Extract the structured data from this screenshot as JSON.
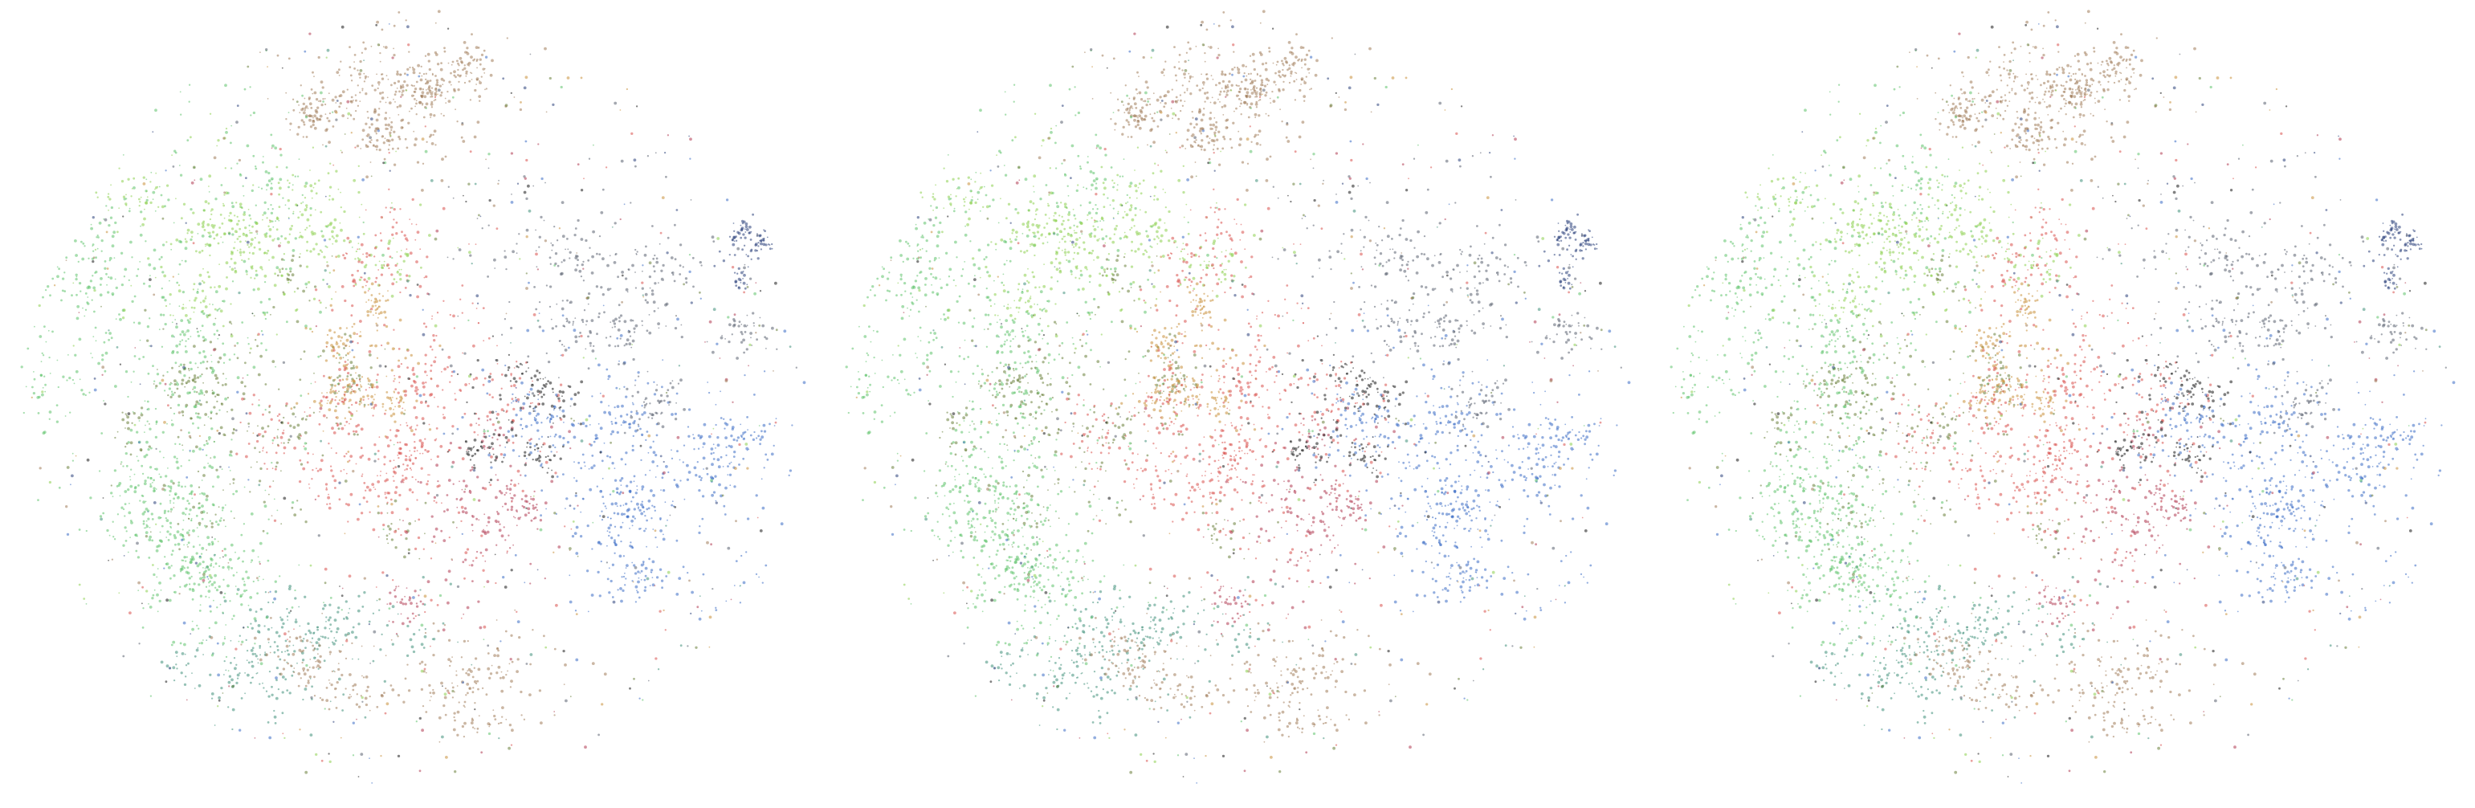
{
  "chart_data": [
    {
      "type": "scatter",
      "title": "",
      "xlabel": "",
      "ylabel": "",
      "axes_visible": false,
      "grid": false,
      "legend": "none",
      "point_count_estimate": 60000,
      "colors": {
        "green": "#5ec26b",
        "lime": "#8ccf4f",
        "olive": "#6a7f3a",
        "brown": "#a07c5a",
        "orange": "#c9903a",
        "red": "#d9514d",
        "crimson": "#b03a52",
        "blue": "#3b6cc4",
        "navy": "#2a3f7a",
        "slate": "#5a6070",
        "black": "#1a1a1a",
        "teal": "#3f8f7a"
      },
      "clusters": [
        {
          "name": "",
          "color": "green",
          "cx": -0.62,
          "cy": 0.28,
          "sx": 0.2,
          "sy": 0.32,
          "weight": 0.16
        },
        {
          "name": "",
          "color": "lime",
          "cx": -0.35,
          "cy": 0.42,
          "sx": 0.18,
          "sy": 0.12,
          "weight": 0.08
        },
        {
          "name": "",
          "color": "olive",
          "cx": -0.42,
          "cy": -0.05,
          "sx": 0.14,
          "sy": 0.18,
          "weight": 0.06
        },
        {
          "name": "",
          "color": "brown",
          "cx": -0.02,
          "cy": 0.8,
          "sx": 0.14,
          "sy": 0.12,
          "weight": 0.09
        },
        {
          "name": "",
          "color": "orange",
          "cx": -0.12,
          "cy": 0.1,
          "sx": 0.08,
          "sy": 0.1,
          "weight": 0.04
        },
        {
          "name": "",
          "color": "red",
          "cx": 0.02,
          "cy": -0.05,
          "sx": 0.16,
          "sy": 0.22,
          "weight": 0.11
        },
        {
          "name": "",
          "color": "crimson",
          "cx": 0.18,
          "cy": -0.3,
          "sx": 0.1,
          "sy": 0.12,
          "weight": 0.04
        },
        {
          "name": "",
          "color": "blue",
          "cx": 0.55,
          "cy": -0.15,
          "sx": 0.18,
          "sy": 0.18,
          "weight": 0.12
        },
        {
          "name": "",
          "color": "navy",
          "cx": 0.85,
          "cy": 0.4,
          "sx": 0.04,
          "sy": 0.05,
          "weight": 0.02
        },
        {
          "name": "",
          "color": "slate",
          "cx": 0.45,
          "cy": 0.35,
          "sx": 0.2,
          "sy": 0.14,
          "weight": 0.07
        },
        {
          "name": "",
          "color": "black",
          "cx": 0.25,
          "cy": -0.02,
          "sx": 0.1,
          "sy": 0.08,
          "weight": 0.03
        },
        {
          "name": "",
          "color": "teal",
          "cx": -0.32,
          "cy": -0.62,
          "sx": 0.16,
          "sy": 0.1,
          "weight": 0.05
        },
        {
          "name": "",
          "color": "brown",
          "cx": 0.05,
          "cy": -0.68,
          "sx": 0.22,
          "sy": 0.08,
          "weight": 0.05
        },
        {
          "name": "",
          "color": "green",
          "cx": -0.5,
          "cy": -0.35,
          "sx": 0.12,
          "sy": 0.12,
          "weight": 0.04
        }
      ],
      "xlim": [
        -1,
        1
      ],
      "ylim": [
        -1,
        1
      ]
    },
    {
      "type": "scatter",
      "title": "",
      "xlabel": "",
      "ylabel": "",
      "axes_visible": false,
      "grid": false,
      "legend": "none",
      "note_same_as": 0
    },
    {
      "type": "scatter",
      "title": "",
      "xlabel": "",
      "ylabel": "",
      "axes_visible": false,
      "grid": false,
      "legend": "none",
      "note_same_as": 0
    }
  ]
}
